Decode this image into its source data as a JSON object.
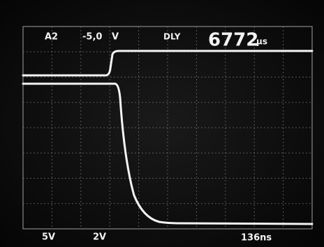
{
  "readout": {
    "channel": "A2",
    "offset": "-5,0",
    "unit": "V",
    "mode": "DLY",
    "delay": "6772",
    "delay_unit": "µs",
    "ch1_scale": "5V",
    "ch2_scale": "2V",
    "timebase": "136ns"
  }
}
